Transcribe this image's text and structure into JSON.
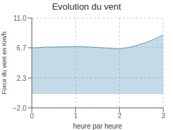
{
  "chart_data": {
    "type": "area",
    "title": "Evolution du vent",
    "xlabel": "heure par heure",
    "ylabel": "Force du vent en Km/h",
    "x": [
      0,
      0.15,
      0.3,
      0.5,
      0.7,
      0.9,
      1.0,
      1.2,
      1.4,
      1.6,
      1.8,
      2.0,
      2.2,
      2.4,
      2.6,
      2.8,
      3.0
    ],
    "values": [
      6.68,
      6.72,
      6.78,
      6.8,
      6.82,
      6.85,
      6.88,
      6.83,
      6.78,
      6.7,
      6.62,
      6.52,
      6.72,
      7.05,
      7.45,
      7.95,
      8.55
    ],
    "color": "#5599bb",
    "xlim": [
      0,
      3
    ],
    "ylim": [
      -2.0,
      11.0
    ],
    "xticks": [
      0,
      1,
      2,
      3
    ],
    "yticks": [
      {
        "value": -2.0,
        "label": "−2.0"
      },
      2.3,
      6.7,
      {
        "value": 11.0,
        "label": "11.0"
      }
    ],
    "grid": true
  }
}
